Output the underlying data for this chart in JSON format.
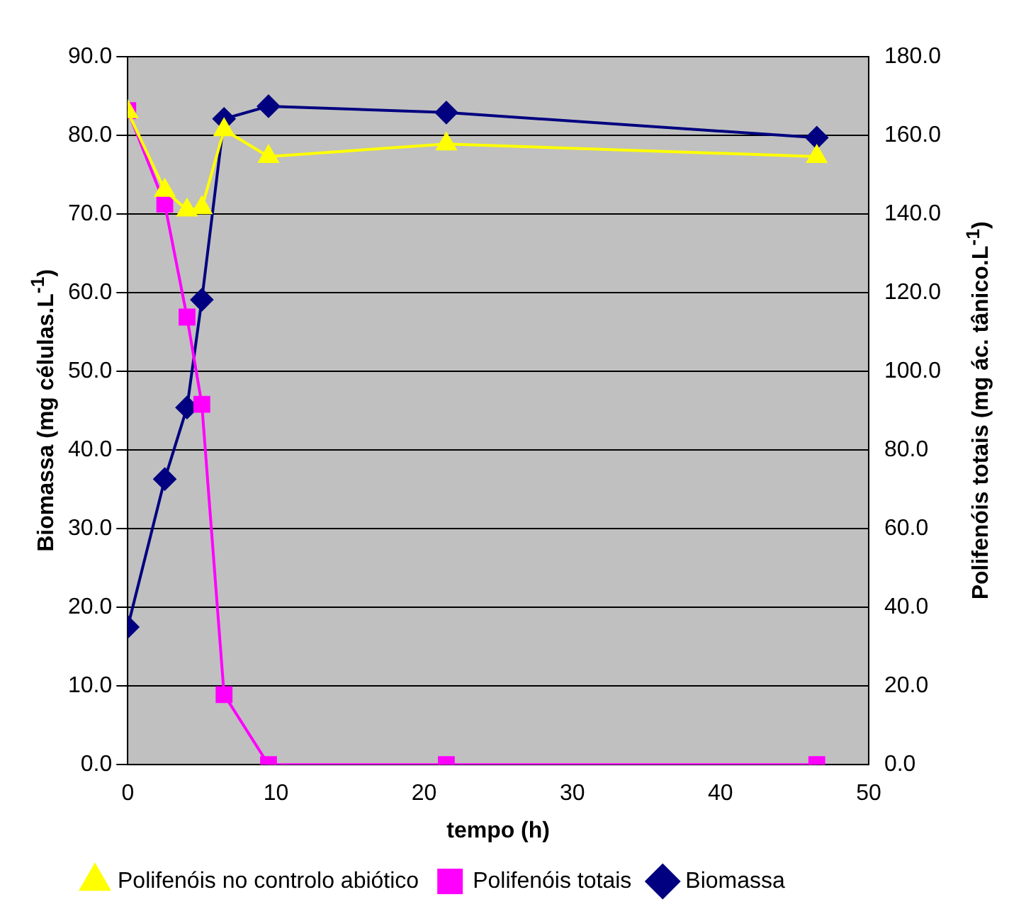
{
  "chart_data": {
    "type": "line",
    "xlabel": "tempo (h)",
    "ylabel": "Biomassa (mg células.L$^{-1}$)",
    "y2label": "Polifenóis totais (mg ác. tânico.L$^{-1}$)",
    "xlim": [
      0,
      50
    ],
    "xticks": [
      0,
      10,
      20,
      30,
      40,
      50
    ],
    "ylim": [
      0,
      90
    ],
    "yticks": [
      {
        "value": 0,
        "label": "0.0"
      },
      {
        "value": 10,
        "label": "10.0"
      },
      {
        "value": 20,
        "label": "20.0"
      },
      {
        "value": 30,
        "label": "30.0"
      },
      {
        "value": 40,
        "label": "40.0"
      },
      {
        "value": 50,
        "label": "50.0"
      },
      {
        "value": 60,
        "label": "60.0"
      },
      {
        "value": 70,
        "label": "70.0"
      },
      {
        "value": 80,
        "label": "80.0"
      },
      {
        "value": 90,
        "label": "90.0"
      }
    ],
    "y2lim": [
      0,
      180
    ],
    "y2ticks": [
      {
        "value": 0,
        "label": "0.0"
      },
      {
        "value": 20,
        "label": "20.0"
      },
      {
        "value": 40,
        "label": "40.0"
      },
      {
        "value": 60,
        "label": "60.0"
      },
      {
        "value": 80,
        "label": "80.0"
      },
      {
        "value": 100,
        "label": "100.0"
      },
      {
        "value": 120,
        "label": "120.0"
      },
      {
        "value": 140,
        "label": "140.0"
      },
      {
        "value": 160,
        "label": "160.0"
      },
      {
        "value": 180,
        "label": "180.0"
      }
    ],
    "grid": "y",
    "legend": "bottom",
    "line_style": "solid",
    "x": [
      0,
      2.5,
      4,
      5,
      6.5,
      9.5,
      21.5,
      46.5
    ],
    "series": [
      {
        "name": "Biomassa",
        "color": "#000080",
        "marker": "diamond",
        "values": [
          17.5,
          36.3,
          45.4,
          59.1,
          82.1,
          83.7,
          82.9,
          79.7
        ]
      },
      {
        "name": "Polifenóis totais",
        "color": "#ff00ff",
        "marker": "square",
        "axis": "y2",
        "values": [
          166.3,
          142.5,
          113.8,
          91.6,
          17.8,
          0,
          0,
          0
        ]
      },
      {
        "name": "Polifenóis no controlo abiótico",
        "color": "#ffff00",
        "marker": "triangle",
        "axis": "y2",
        "values": [
          166,
          146,
          141,
          141.6,
          161.4,
          154.6,
          157.8,
          154.6
        ]
      }
    ]
  }
}
